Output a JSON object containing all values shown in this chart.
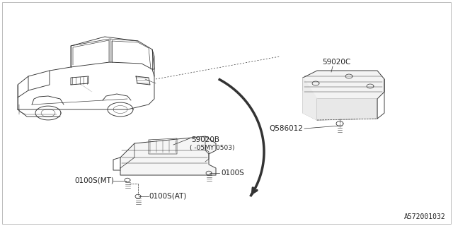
{
  "bg_color": "#ffffff",
  "border_color": "#aaaaaa",
  "line_color": "#333333",
  "part_id": "A572001032",
  "labels": {
    "59020B": "59020B",
    "59020B_sub": "( -05MY’0503)",
    "59020C": "59020C",
    "Q586012": "Q586012",
    "0100S": "0100S",
    "0100S_MT": "0100S(MT)",
    "0100S_AT": "0100S(AT)"
  },
  "font_size": 7.5,
  "font_size_small": 6.5,
  "font_size_id": 7.0
}
